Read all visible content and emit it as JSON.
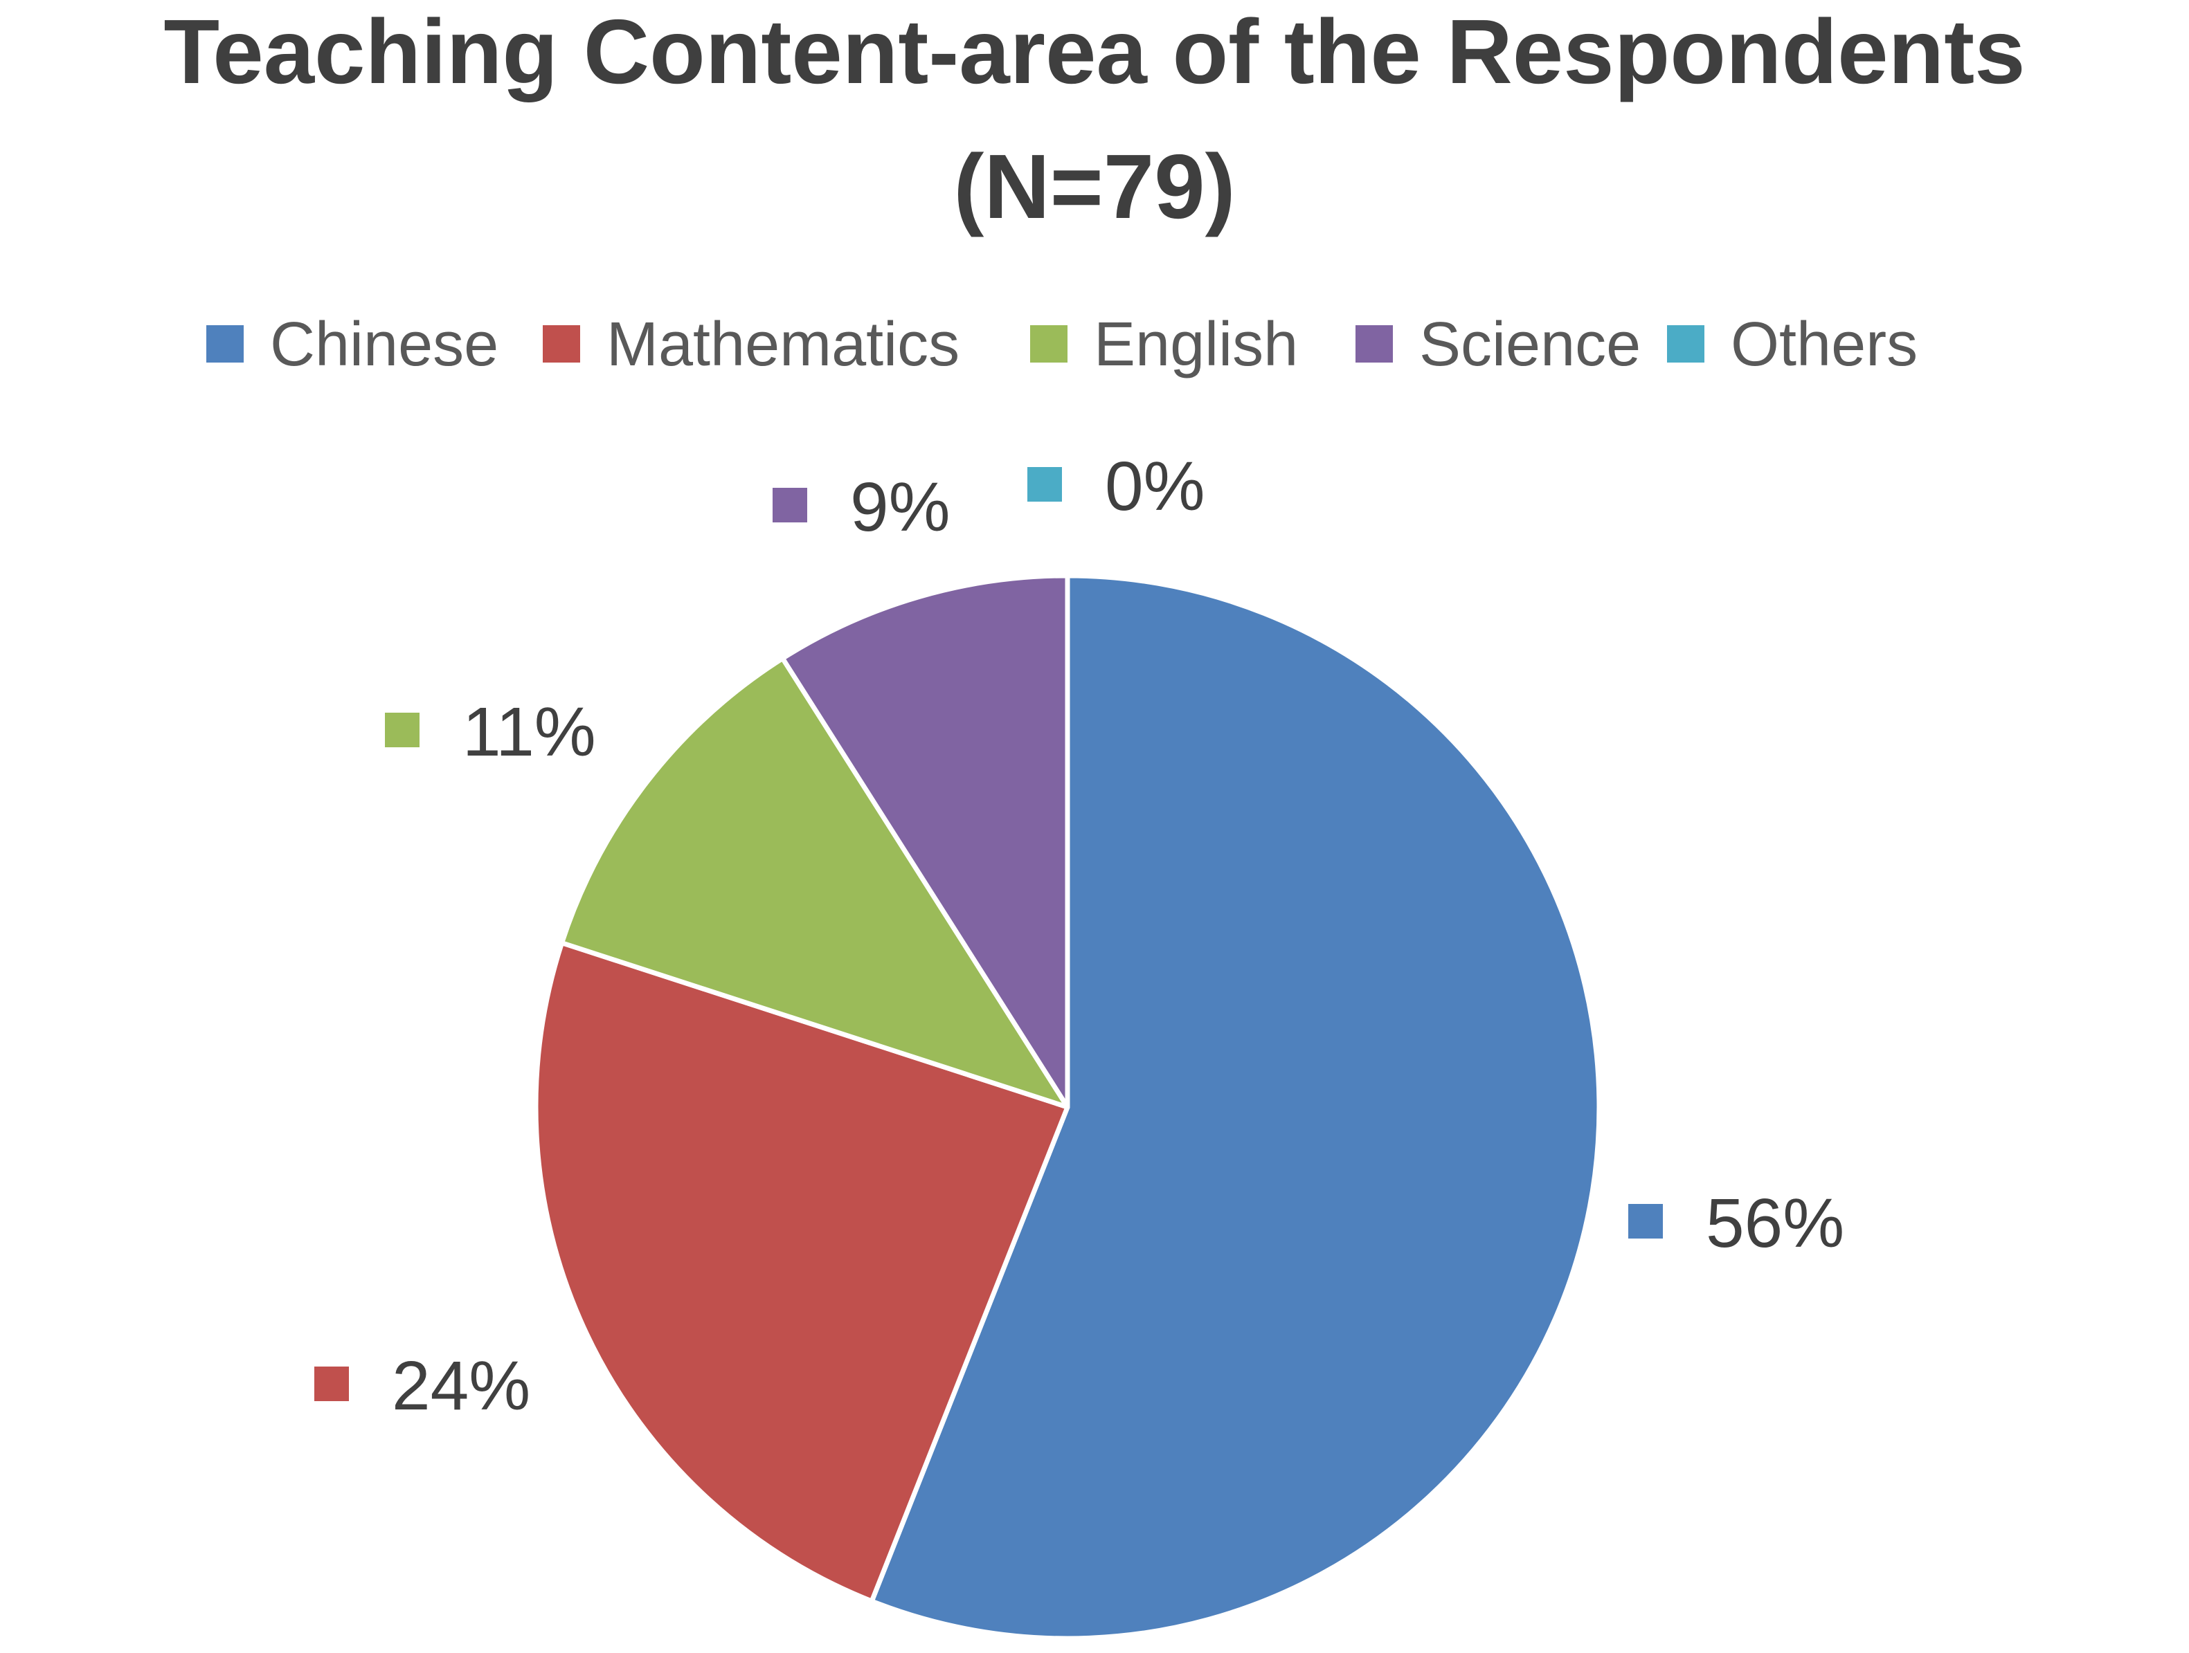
{
  "chart_data": {
    "type": "pie",
    "title": "Teaching Content-area of the Respondents",
    "subtitle": "(N=79)",
    "legend_position": "top",
    "start_angle_deg": 0,
    "direction": "clockwise",
    "categories": [
      "Chinese",
      "Mathematics",
      "English",
      "Science",
      "Others"
    ],
    "values": [
      56,
      24,
      11,
      9,
      0
    ],
    "labels": [
      "56%",
      "24%",
      "11%",
      "9%",
      "0%"
    ],
    "colors": [
      "#4f81bd",
      "#c0504d",
      "#9bbb59",
      "#8064a2",
      "#4bacc6"
    ]
  }
}
